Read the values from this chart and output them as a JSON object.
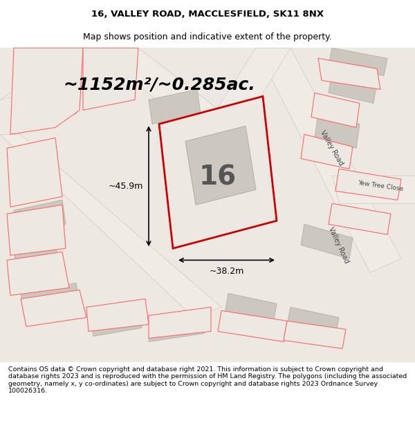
{
  "title_line1": "16, VALLEY ROAD, MACCLESFIELD, SK11 8NX",
  "title_line2": "Map shows position and indicative extent of the property.",
  "area_label": "~1152m²/~0.285ac.",
  "plot_number": "16",
  "width_label": "~38.2m",
  "height_label": "~45.9m",
  "bg_color": "#f0ede8",
  "map_bg": "#e8e4de",
  "plot_fill": "#e8e4de",
  "plot_border": "#cc0000",
  "building_fill": "#d0ccc6",
  "road_color": "#ffffff",
  "road_stroke": "#ccbbbb",
  "footer_text": "Contains OS data © Crown copyright and database right 2021. This information is subject to Crown copyright and database rights 2023 and is reproduced with the permission of HM Land Registry. The polygons (including the associated geometry, namely x, y co-ordinates) are subject to Crown copyright and database rights 2023 Ordnance Survey 100026316.",
  "title_fontsize": 9.5,
  "area_fontsize": 18,
  "plot_num_fontsize": 28,
  "label_fontsize": 9,
  "footer_fontsize": 6.8
}
